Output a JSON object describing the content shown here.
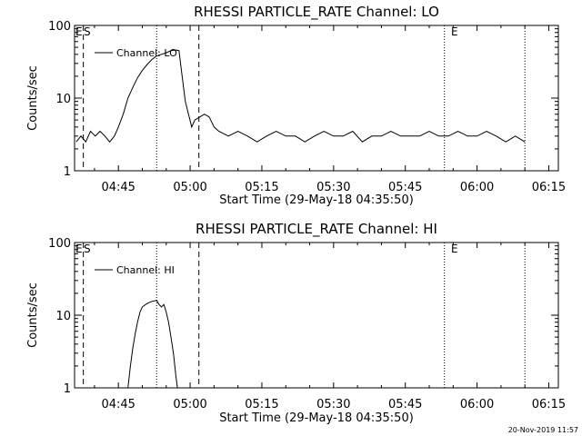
{
  "footer_timestamp": "20-Nov-2019 11:57",
  "chart_data": [
    {
      "type": "line",
      "title": "RHESSI PARTICLE_RATE Channel: LO",
      "xlabel": "Start Time (29-May-18 04:35:50)",
      "ylabel": "Counts/sec",
      "yscale": "log",
      "ylim": [
        1,
        100
      ],
      "xlim": [
        "04:35:50",
        "06:17:00"
      ],
      "x_tick_labels": [
        "04:45",
        "05:00",
        "05:15",
        "05:30",
        "05:45",
        "06:00",
        "06:15"
      ],
      "y_tick_labels": [
        "1",
        "10",
        "100"
      ],
      "markers": {
        "s": "S",
        "e1": "E",
        "e2": "E"
      },
      "vertical_lines": [
        {
          "t": "04:37:40",
          "style": "dashed"
        },
        {
          "t": "04:53:00",
          "style": "dotted"
        },
        {
          "t": "05:01:50",
          "style": "dashed"
        },
        {
          "t": "05:53:10",
          "style": "dotted"
        },
        {
          "t": "06:10:00",
          "style": "dotted"
        }
      ],
      "series": [
        {
          "name": "Channel: LO",
          "points": [
            [
              "04:36:10",
              2.5
            ],
            [
              "04:37:10",
              3.0
            ],
            [
              "04:38:10",
              2.5
            ],
            [
              "04:39:10",
              3.5
            ],
            [
              "04:40:10",
              3.0
            ],
            [
              "04:41:10",
              3.5
            ],
            [
              "04:42:10",
              3.0
            ],
            [
              "04:43:10",
              2.5
            ],
            [
              "04:44:10",
              3.0
            ],
            [
              "04:45:00",
              4.0
            ],
            [
              "04:46:00",
              6.0
            ],
            [
              "04:47:00",
              10.0
            ],
            [
              "04:48:00",
              14.0
            ],
            [
              "04:49:00",
              19.0
            ],
            [
              "04:50:00",
              24.0
            ],
            [
              "04:51:00",
              29.0
            ],
            [
              "04:52:00",
              34.0
            ],
            [
              "04:53:00",
              38.0
            ],
            [
              "04:54:00",
              40.0
            ],
            [
              "04:55:00",
              42.0
            ],
            [
              "04:56:00",
              45.0
            ],
            [
              "04:57:00",
              46.0
            ],
            [
              "04:57:40",
              45.0
            ],
            [
              "04:58:20",
              20.0
            ],
            [
              "04:59:00",
              9.0
            ],
            [
              "04:59:40",
              6.0
            ],
            [
              "05:00:20",
              4.0
            ],
            [
              "05:01:00",
              5.0
            ],
            [
              "05:02:00",
              5.5
            ],
            [
              "05:03:00",
              6.0
            ],
            [
              "05:04:00",
              5.5
            ],
            [
              "05:05:00",
              4.0
            ],
            [
              "05:06:00",
              3.5
            ],
            [
              "05:08:00",
              3.0
            ],
            [
              "05:10:00",
              3.5
            ],
            [
              "05:12:00",
              3.0
            ],
            [
              "05:14:00",
              2.5
            ],
            [
              "05:16:00",
              3.0
            ],
            [
              "05:18:00",
              3.5
            ],
            [
              "05:20:00",
              3.0
            ],
            [
              "05:22:00",
              3.0
            ],
            [
              "05:24:00",
              2.5
            ],
            [
              "05:26:00",
              3.0
            ],
            [
              "05:28:00",
              3.5
            ],
            [
              "05:30:00",
              3.0
            ],
            [
              "05:32:00",
              3.0
            ],
            [
              "05:34:00",
              3.5
            ],
            [
              "05:36:00",
              2.5
            ],
            [
              "05:38:00",
              3.0
            ],
            [
              "05:40:00",
              3.0
            ],
            [
              "05:42:00",
              3.5
            ],
            [
              "05:44:00",
              3.0
            ],
            [
              "05:46:00",
              3.0
            ],
            [
              "05:48:00",
              3.0
            ],
            [
              "05:50:00",
              3.5
            ],
            [
              "05:52:00",
              3.0
            ],
            [
              "05:54:00",
              3.0
            ],
            [
              "05:56:00",
              3.5
            ],
            [
              "05:58:00",
              3.0
            ],
            [
              "06:00:00",
              3.0
            ],
            [
              "06:02:00",
              3.5
            ],
            [
              "06:04:00",
              3.0
            ],
            [
              "06:06:00",
              2.5
            ],
            [
              "06:08:00",
              3.0
            ],
            [
              "06:10:00",
              2.5
            ]
          ]
        }
      ]
    },
    {
      "type": "line",
      "title": "RHESSI PARTICLE_RATE Channel: HI",
      "xlabel": "Start Time (29-May-18 04:35:50)",
      "ylabel": "Counts/sec",
      "yscale": "log",
      "ylim": [
        1,
        100
      ],
      "xlim": [
        "04:35:50",
        "06:17:00"
      ],
      "x_tick_labels": [
        "04:45",
        "05:00",
        "05:15",
        "05:30",
        "05:45",
        "06:00",
        "06:15"
      ],
      "y_tick_labels": [
        "1",
        "10",
        "100"
      ],
      "markers": {
        "s": "S",
        "e1": "E",
        "e2": "E"
      },
      "vertical_lines": [
        {
          "t": "04:37:40",
          "style": "dashed"
        },
        {
          "t": "04:53:00",
          "style": "dotted"
        },
        {
          "t": "05:01:50",
          "style": "dashed"
        },
        {
          "t": "05:53:10",
          "style": "dotted"
        },
        {
          "t": "06:10:00",
          "style": "dotted"
        }
      ],
      "series": [
        {
          "name": "Channel: HI",
          "points": [
            [
              "04:47:00",
              1.0
            ],
            [
              "04:47:30",
              2.0
            ],
            [
              "04:48:00",
              3.5
            ],
            [
              "04:48:30",
              5.5
            ],
            [
              "04:49:00",
              8.0
            ],
            [
              "04:49:30",
              11.0
            ],
            [
              "04:50:00",
              13.0
            ],
            [
              "04:51:00",
              14.5
            ],
            [
              "04:52:00",
              15.5
            ],
            [
              "04:53:00",
              16.0
            ],
            [
              "04:53:30",
              14.0
            ],
            [
              "04:54:00",
              13.0
            ],
            [
              "04:54:30",
              14.0
            ],
            [
              "04:55:00",
              11.0
            ],
            [
              "04:55:30",
              8.0
            ],
            [
              "04:56:00",
              5.0
            ],
            [
              "04:56:30",
              3.0
            ],
            [
              "04:57:00",
              1.5
            ],
            [
              "04:57:20",
              1.0
            ]
          ]
        }
      ]
    }
  ]
}
